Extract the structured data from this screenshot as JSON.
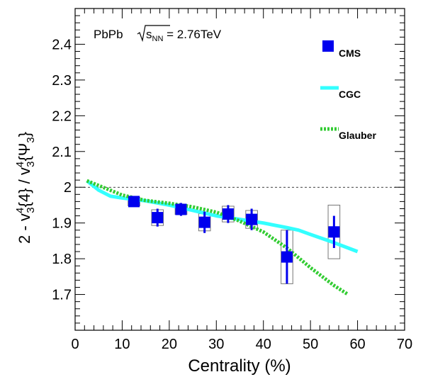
{
  "chart_data": {
    "type": "scatter",
    "title": "",
    "system_label": "PbPb",
    "energy_label": {
      "prefix": "s",
      "sub": "NN",
      "suffix": " = 2.76TeV"
    },
    "xlabel": "Centrality (%)",
    "ylabel": {
      "lead": "2 - v",
      "p1sup": "4",
      "p1sub": "3",
      "p1rest": "{4} / v",
      "p2sup": "4",
      "p2sub": "3",
      "p2mid": "{Ψ",
      "p2sub2": "3",
      "p2end": "}"
    },
    "xlim": [
      0,
      70
    ],
    "ylim": [
      1.6,
      2.5
    ],
    "xticks": [
      0,
      10,
      20,
      30,
      40,
      50,
      60,
      70
    ],
    "yticks": [
      1.7,
      1.8,
      1.9,
      2.0,
      2.1,
      2.2,
      2.3,
      2.4
    ],
    "ytick_labels": [
      "1.7",
      "1.8",
      "1.9",
      "2",
      "2.1",
      "2.2",
      "2.3",
      "2.4"
    ],
    "reference_line": 2.0,
    "grid": false,
    "legend_position": "top-right",
    "series": [
      {
        "name": "CMS",
        "kind": "points",
        "color": "#0000ee",
        "points": [
          {
            "x": 12.5,
            "y": 1.96,
            "stat": 0.012,
            "sys": 0.012,
            "bw": 2.5
          },
          {
            "x": 17.5,
            "y": 1.915,
            "stat": 0.025,
            "sys": 0.022,
            "bw": 2.5
          },
          {
            "x": 22.5,
            "y": 1.938,
            "stat": 0.018,
            "sys": 0.014,
            "bw": 2.5
          },
          {
            "x": 27.5,
            "y": 1.902,
            "stat": 0.03,
            "sys": 0.024,
            "bw": 2.5
          },
          {
            "x": 32.5,
            "y": 1.925,
            "stat": 0.025,
            "sys": 0.022,
            "bw": 2.5
          },
          {
            "x": 37.5,
            "y": 1.91,
            "stat": 0.03,
            "sys": 0.025,
            "bw": 2.5
          },
          {
            "x": 45.0,
            "y": 1.805,
            "stat": 0.075,
            "sys": 0.075,
            "bw": 2.5
          },
          {
            "x": 55.0,
            "y": 1.875,
            "stat": 0.045,
            "sys": 0.075,
            "bw": 2.5
          }
        ]
      },
      {
        "name": "CGC",
        "kind": "line",
        "color": "#33ffff",
        "style": "solid",
        "x": [
          2.5,
          5,
          7.5,
          10,
          15,
          20,
          25,
          30,
          35,
          40,
          45,
          47.5,
          50,
          55,
          60
        ],
        "y": [
          2.018,
          1.992,
          1.975,
          1.97,
          1.962,
          1.95,
          1.935,
          1.92,
          1.91,
          1.9,
          1.887,
          1.88,
          1.868,
          1.845,
          1.82
        ]
      },
      {
        "name": "Glauber",
        "kind": "line",
        "color": "#33cc33",
        "style": "dotted",
        "x": [
          2.5,
          5,
          10,
          15,
          20,
          25,
          30,
          35,
          40,
          45,
          50,
          55,
          58
        ],
        "y": [
          2.018,
          2.005,
          1.978,
          1.963,
          1.955,
          1.945,
          1.93,
          1.905,
          1.875,
          1.83,
          1.775,
          1.725,
          1.7
        ]
      }
    ]
  }
}
